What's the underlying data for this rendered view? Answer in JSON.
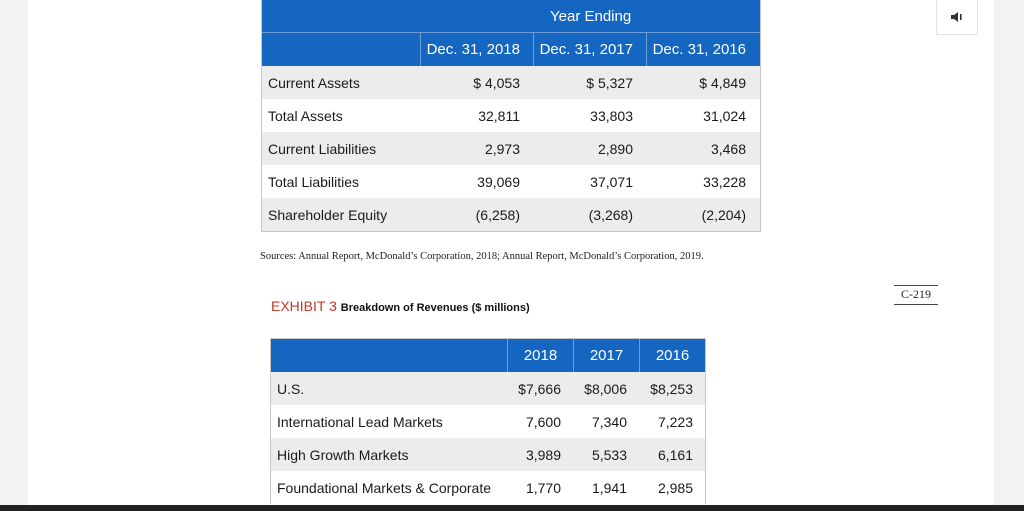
{
  "balance_table": {
    "group_header": "Year Ending",
    "columns": [
      "Dec. 31, 2018",
      "Dec. 31, 2017",
      "Dec. 31, 2016"
    ],
    "rows": [
      {
        "label": "Current Assets",
        "values": [
          "$ 4,053",
          "$ 5,327",
          "$ 4,849"
        ]
      },
      {
        "label": "Total Assets",
        "values": [
          "32,811",
          "33,803",
          "31,024"
        ]
      },
      {
        "label": "Current Liabilities",
        "values": [
          "2,973",
          "2,890",
          "3,468"
        ]
      },
      {
        "label": "Total Liabilities",
        "values": [
          "39,069",
          "37,071",
          "33,228"
        ]
      },
      {
        "label": "Shareholder Equity",
        "values": [
          "(6,258)",
          "(3,268)",
          "(2,204)"
        ]
      }
    ]
  },
  "sources": "Sources: Annual Report, McDonald’s Corporation, 2018; Annual Report, McDonald’s Corporation, 2019.",
  "page_number": "C-219",
  "exhibit": {
    "label": "EXHIBIT 3",
    "caption": "Breakdown of Revenues ($ millions)"
  },
  "revenue_table": {
    "columns": [
      "2018",
      "2017",
      "2016"
    ],
    "rows": [
      {
        "label": "U.S.",
        "values": [
          "$7,666",
          "$8,006",
          "$8,253"
        ]
      },
      {
        "label": "International Lead Markets",
        "values": [
          "7,600",
          "7,340",
          "7,223"
        ]
      },
      {
        "label": "High Growth Markets",
        "values": [
          "3,989",
          "5,533",
          "6,161"
        ]
      },
      {
        "label": "Foundational Markets & Corporate",
        "values": [
          "1,770",
          "1,941",
          "2,985"
        ]
      }
    ]
  },
  "colors": {
    "header_blue": "#1466c0",
    "exhibit_red": "#c0392b"
  },
  "icons": {
    "audio": "speaker-icon"
  }
}
